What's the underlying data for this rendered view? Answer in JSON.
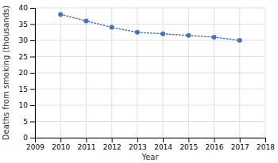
{
  "chart_data": {
    "type": "line",
    "x": [
      2010,
      2011,
      2012,
      2013,
      2014,
      2015,
      2016,
      2017
    ],
    "values": [
      38.0,
      36.0,
      34.0,
      32.5,
      32.0,
      31.5,
      31.0,
      30.0
    ],
    "color": "#4472C4",
    "marker": "circle",
    "line_style": "dotted",
    "xlim": [
      2009,
      2018
    ],
    "ylim": [
      0,
      40
    ],
    "xticks": [
      2009,
      2010,
      2011,
      2012,
      2013,
      2014,
      2015,
      2016,
      2017,
      2018
    ],
    "yticks": [
      0,
      5,
      10,
      15,
      20,
      25,
      30,
      35,
      40
    ],
    "xlabel": "Year",
    "ylabel": "Deaths from smoking (thousands)",
    "grid": true
  }
}
